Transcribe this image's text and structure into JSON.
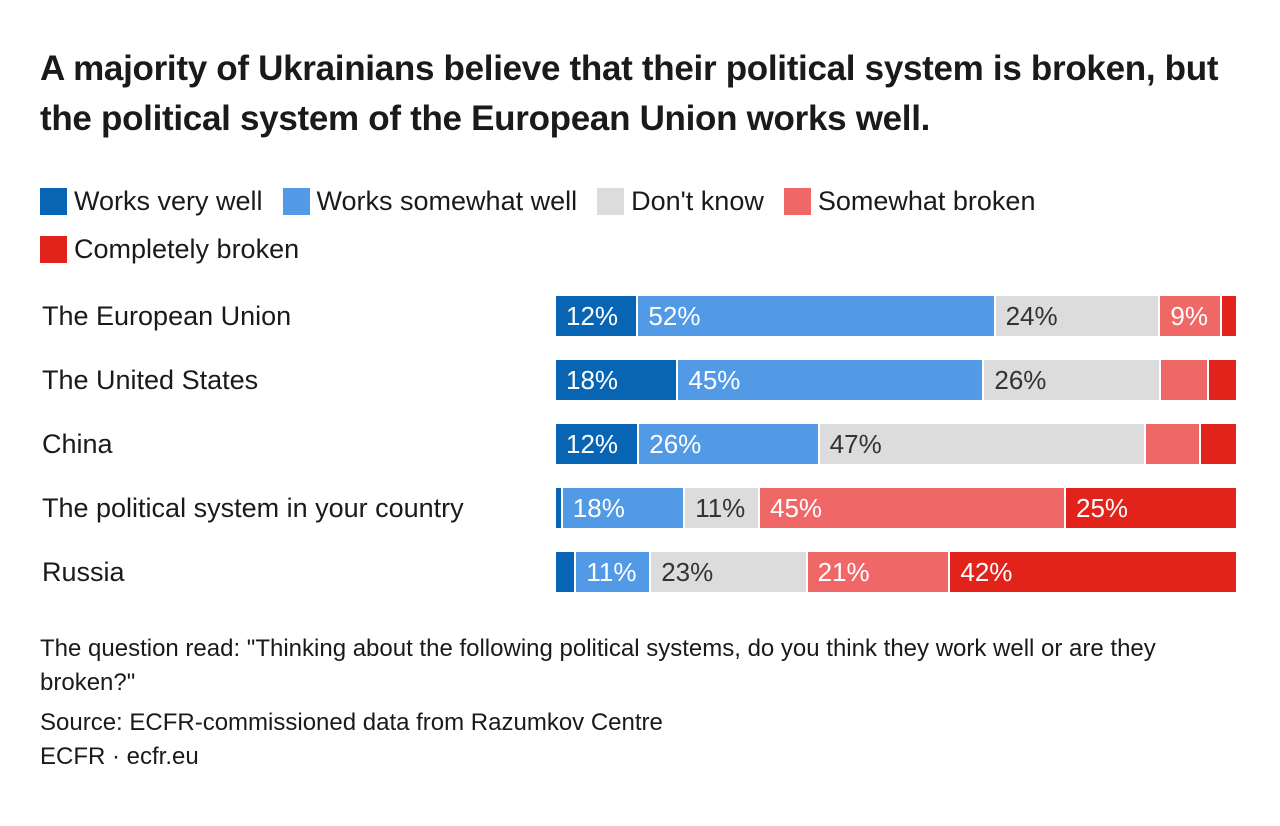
{
  "title": "A majority of Ukrainians believe that their political system is broken, but the political system of the European Union works well.",
  "colors": {
    "works_very_well": "#0865b4",
    "works_somewhat_well": "#5299e6",
    "dont_know": "#dcdcdc",
    "somewhat_broken": "#f06767",
    "completely_broken": "#e2231c"
  },
  "chart_data": {
    "type": "bar",
    "orientation": "horizontal",
    "stacked": true,
    "normalized": true,
    "title": "A majority of Ukrainians believe that their political system is broken, but the political system of the European Union works well.",
    "categories": [
      "The European Union",
      "The United States",
      "China",
      "The political system in your country",
      "Russia"
    ],
    "series": [
      {
        "name": "Works very well",
        "color": "#0865b4",
        "values": [
          12,
          18,
          12,
          1,
          3
        ],
        "labels": [
          "12%",
          "18%",
          "12%",
          "",
          ""
        ]
      },
      {
        "name": "Works somewhat well",
        "color": "#5299e6",
        "values": [
          52,
          45,
          26,
          18,
          11
        ],
        "labels": [
          "52%",
          "45%",
          "26%",
          "18%",
          "11%"
        ]
      },
      {
        "name": "Don't know",
        "color": "#dcdcdc",
        "values": [
          24,
          26,
          47,
          11,
          23
        ],
        "labels": [
          "24%",
          "26%",
          "47%",
          "11%",
          "23%"
        ]
      },
      {
        "name": "Somewhat broken",
        "color": "#f06767",
        "values": [
          9,
          7,
          8,
          45,
          21
        ],
        "labels": [
          "9%",
          "",
          "",
          "45%",
          "21%"
        ]
      },
      {
        "name": "Completely broken",
        "color": "#e2231c",
        "values": [
          2,
          4,
          5,
          25,
          42
        ],
        "labels": [
          "",
          "",
          "",
          "25%",
          "42%"
        ]
      }
    ],
    "legend": [
      "Works very well",
      "Works somewhat well",
      "Don't know",
      "Somewhat broken",
      "Completely broken"
    ],
    "legend_position": "top",
    "value_labels_color": {
      "dark_segments": "#ffffff",
      "light_segments": "#333333"
    },
    "xlim": [
      0,
      100
    ]
  },
  "footer": {
    "question": "The question read: \"Thinking about the following political systems, do you think they work well or are they broken?\"",
    "source": "Source: ECFR-commissioned data from Razumkov Centre",
    "credit": "ECFR · ecfr.eu"
  }
}
